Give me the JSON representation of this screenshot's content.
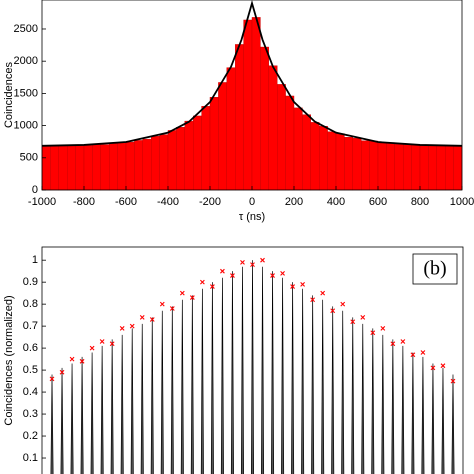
{
  "chart_data": [
    {
      "type": "histogram",
      "xlabel": "τ (ns)",
      "ylabel": "Coincidences",
      "bins": [
        -1000,
        -960,
        -920,
        -880,
        -840,
        -800,
        -760,
        -720,
        -680,
        -640,
        -600,
        -560,
        -520,
        -480,
        -440,
        -400,
        -360,
        -320,
        -280,
        -240,
        -200,
        -160,
        -120,
        -80,
        -40,
        0,
        40,
        80,
        120,
        160,
        200,
        240,
        280,
        320,
        360,
        400,
        440,
        480,
        520,
        560,
        600,
        640,
        680,
        720,
        760,
        800,
        840,
        880,
        920,
        960,
        1000
      ],
      "values": [
        690,
        684,
        695,
        688,
        700,
        693,
        712,
        705,
        722,
        735,
        744,
        770,
        790,
        835,
        860,
        925,
        975,
        1070,
        1150,
        1300,
        1440,
        1670,
        1900,
        2260,
        2640,
        2680,
        2220,
        1930,
        1640,
        1460,
        1275,
        1170,
        1050,
        990,
        905,
        875,
        820,
        805,
        765,
        760,
        730,
        735,
        712,
        705,
        700,
        692,
        698,
        685,
        695,
        690
      ],
      "color": "#ff0000",
      "fit": {
        "color": "#000000",
        "x": [
          -1000,
          -800,
          -600,
          -400,
          -300,
          -200,
          -100,
          -50,
          0,
          50,
          100,
          200,
          300,
          400,
          600,
          800,
          1000
        ],
        "values": [
          686,
          700,
          745,
          891,
          1060,
          1365,
          1913,
          2334,
          2900,
          2334,
          1913,
          1365,
          1060,
          891,
          745,
          700,
          686
        ]
      },
      "xlim": [
        -1000,
        1000
      ],
      "xticks": [
        -1000,
        -800,
        -600,
        -400,
        -200,
        0,
        200,
        400,
        600,
        800,
        1000
      ],
      "ylim": [
        0,
        2950
      ],
      "yticks": [
        0,
        500,
        1000,
        1500,
        2000,
        2500
      ]
    },
    {
      "type": "stem",
      "ylabel": "Coincidences (normalized)",
      "label": "(b)",
      "series": [
        {
          "color": "#000000",
          "values": [
            0.48,
            0.51,
            0.53,
            0.56,
            0.58,
            0.61,
            0.64,
            0.66,
            0.69,
            0.71,
            0.74,
            0.77,
            0.79,
            0.82,
            0.84,
            0.87,
            0.9,
            0.92,
            0.95,
            0.97,
            1.0,
            0.97,
            0.95,
            0.92,
            0.9,
            0.87,
            0.84,
            0.82,
            0.79,
            0.77,
            0.74,
            0.71,
            0.69,
            0.66,
            0.64,
            0.61,
            0.58,
            0.56,
            0.53,
            0.51,
            0.48
          ]
        },
        {
          "color": "#ff0000",
          "marker": "x",
          "values": [
            0.46,
            0.49,
            0.55,
            0.54,
            0.6,
            0.63,
            0.62,
            0.69,
            0.7,
            0.74,
            0.73,
            0.8,
            0.78,
            0.85,
            0.83,
            0.9,
            0.88,
            0.95,
            0.93,
            0.99,
            0.98,
            1.0,
            0.93,
            0.94,
            0.88,
            0.89,
            0.82,
            0.85,
            0.77,
            0.8,
            0.72,
            0.74,
            0.67,
            0.69,
            0.62,
            0.63,
            0.57,
            0.58,
            0.51,
            0.52,
            0.45
          ]
        }
      ],
      "ylim": [
        0,
        1.06
      ],
      "yticks": [
        0.1,
        0.2,
        0.3,
        0.4,
        0.5,
        0.6,
        0.7,
        0.8,
        0.9,
        1
      ]
    }
  ]
}
